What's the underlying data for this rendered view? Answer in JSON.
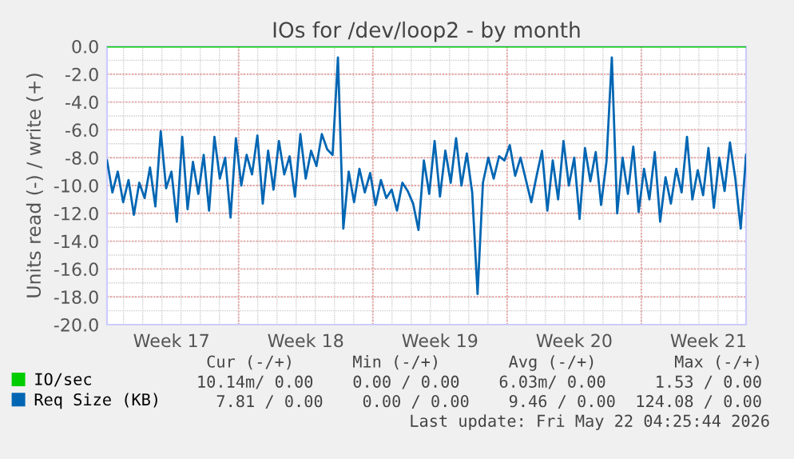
{
  "chart_data": {
    "type": "line",
    "title": "IOs for /dev/loop2 - by month",
    "ylabel": "Units read (-) / write (+)",
    "ylim": [
      -20,
      0
    ],
    "yticks": [
      {
        "value": -20,
        "label": "-20.0"
      },
      {
        "value": -18,
        "label": "-18.0"
      },
      {
        "value": -16,
        "label": "-16.0"
      },
      {
        "value": -14,
        "label": "-14.0"
      },
      {
        "value": -12,
        "label": "-12.0"
      },
      {
        "value": -10,
        "label": "-10.0"
      },
      {
        "value": -8,
        "label": "-8.0"
      },
      {
        "value": -6,
        "label": "-6.0"
      },
      {
        "value": -4,
        "label": "-4.0"
      },
      {
        "value": -2,
        "label": "-2.0"
      },
      {
        "value": 0,
        "label": "0.0"
      }
    ],
    "categories": [
      null,
      null,
      null,
      null,
      null,
      null,
      null,
      null,
      null,
      null,
      null,
      null,
      "Week 17",
      null,
      null,
      null,
      null,
      null,
      null,
      null,
      null,
      null,
      null,
      null,
      null,
      null,
      null,
      null,
      null,
      null,
      null,
      null,
      null,
      null,
      null,
      null,
      null,
      "Week 18",
      null,
      null,
      null,
      null,
      null,
      null,
      null,
      null,
      null,
      null,
      null,
      null,
      null,
      null,
      null,
      null,
      null,
      null,
      null,
      null,
      null,
      null,
      null,
      null,
      "Week 19",
      null,
      null,
      null,
      null,
      null,
      null,
      null,
      null,
      null,
      null,
      null,
      null,
      null,
      null,
      null,
      null,
      null,
      null,
      null,
      null,
      null,
      null,
      null,
      null,
      "Week 20",
      null,
      null,
      null,
      null,
      null,
      null,
      null,
      null,
      null,
      null,
      null,
      null,
      null,
      null,
      null,
      null,
      null,
      null,
      null,
      null,
      null,
      null,
      null,
      null,
      "Week 21",
      null,
      null,
      null,
      null,
      null,
      null,
      null
    ],
    "grid": true,
    "legend": "bottom",
    "marker": "none",
    "line_style": "solid",
    "series": [
      {
        "name": "IO/sec",
        "color": "#00cc00",
        "values": [
          0,
          0,
          0,
          0,
          0,
          0,
          0,
          0,
          0,
          0,
          0,
          0,
          0,
          0,
          0,
          0,
          0,
          0,
          0,
          0,
          0,
          0,
          0,
          0,
          0,
          0,
          0,
          0,
          0,
          0,
          0,
          0,
          0,
          0,
          0,
          0,
          0,
          0,
          0,
          0,
          0,
          0,
          0,
          0,
          0,
          0,
          0,
          0,
          0,
          0,
          0,
          0,
          0,
          0,
          0,
          0,
          0,
          0,
          0,
          0,
          0,
          0,
          0,
          0,
          0,
          0,
          0,
          0,
          0,
          0,
          0,
          0,
          0,
          0,
          0,
          0,
          0,
          0,
          0,
          0,
          0,
          0,
          0,
          0,
          0,
          0,
          0,
          0,
          0,
          0,
          0,
          0,
          0,
          0,
          0,
          0,
          0,
          0,
          0,
          0,
          0,
          0,
          0,
          0,
          0,
          0,
          0,
          0,
          0,
          0,
          0,
          0,
          0,
          0,
          0,
          0,
          0,
          0,
          0,
          0
        ]
      },
      {
        "name": "Req Size (KB)",
        "color": "#0066b3",
        "values": [
          -8.2,
          -10.5,
          -9.0,
          -11.2,
          -9.6,
          -12.1,
          -9.8,
          -10.9,
          -8.7,
          -11.5,
          -6.1,
          -10.2,
          -9.0,
          -12.6,
          -6.5,
          -11.7,
          -8.3,
          -10.6,
          -7.8,
          -11.8,
          -6.5,
          -9.5,
          -8.0,
          -12.3,
          -6.6,
          -10.0,
          -7.8,
          -9.2,
          -6.4,
          -11.3,
          -7.5,
          -10.3,
          -6.8,
          -9.2,
          -7.9,
          -10.8,
          -6.3,
          -9.5,
          -7.5,
          -8.6,
          -6.3,
          -7.4,
          -7.8,
          -0.8,
          -13.1,
          -9.0,
          -11.2,
          -8.8,
          -10.5,
          -9.1,
          -11.4,
          -9.6,
          -10.9,
          -10.3,
          -11.8,
          -9.8,
          -10.4,
          -11.3,
          -13.2,
          -8.2,
          -10.6,
          -6.8,
          -10.8,
          -7.5,
          -9.8,
          -6.6,
          -10.0,
          -7.7,
          -10.5,
          -17.8,
          -9.8,
          -8.0,
          -9.5,
          -7.9,
          -8.2,
          -7.1,
          -9.3,
          -8.0,
          -9.6,
          -11.2,
          -9.3,
          -7.5,
          -11.8,
          -8.2,
          -11.0,
          -6.8,
          -10.0,
          -8.0,
          -12.4,
          -7.3,
          -9.7,
          -7.6,
          -11.4,
          -8.3,
          -0.8,
          -12.0,
          -8.0,
          -10.6,
          -7.2,
          -11.9,
          -8.8,
          -11.0,
          -7.6,
          -12.6,
          -9.4,
          -11.3,
          -8.8,
          -10.5,
          -6.5,
          -11.0,
          -8.9,
          -10.7,
          -7.3,
          -11.6,
          -8.0,
          -10.4,
          -6.9,
          -9.5,
          -13.1,
          -7.8
        ]
      }
    ],
    "annotations": [
      "Cur (-/+)      Min (-/+)       Avg (-/+)        Max (-/+)",
      "10.14m/ 0.00    0.00 / 0.00    6.03m/ 0.00     1.53 / 0.00",
      "7.81 / 0.00    0.00 / 0.00    9.46 / 0.00  124.08 / 0.00",
      "Last update: Fri May 22 04:25:44 2026"
    ]
  }
}
